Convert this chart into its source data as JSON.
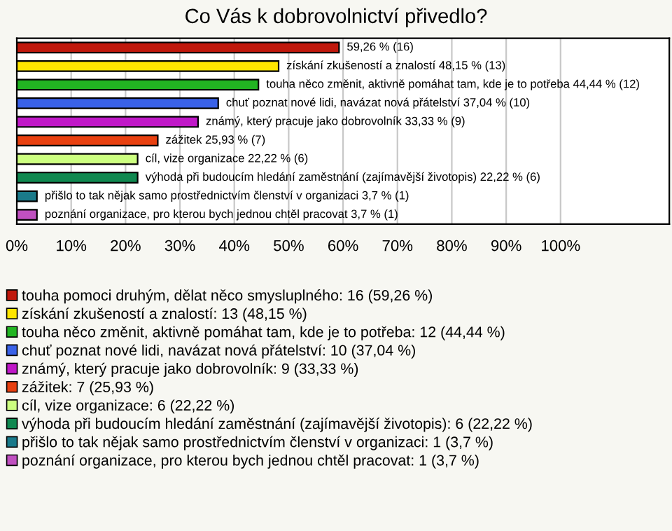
{
  "chart_data": {
    "type": "bar",
    "orientation": "horizontal",
    "title": "Co Vás k dobrovolnictví přivedlo?",
    "categories": [
      null,
      null,
      null,
      null,
      null,
      null,
      null,
      null,
      null,
      null
    ],
    "series": [
      {
        "name": "touha pomoci druhým, dělat něco smysluplného: 16 (59,26 %)",
        "color": "#c0180c",
        "values": [
          59.26,
          null,
          null,
          null,
          null,
          null,
          null,
          null,
          null,
          null
        ],
        "value_labels": [
          "59,26 % (16)",
          null,
          null,
          null,
          null,
          null,
          null,
          null,
          null,
          null
        ]
      },
      {
        "name": "získání zkušeností a znalostí: 13 (48,15 %)",
        "color": "#ffe600",
        "values": [
          null,
          48.15,
          null,
          null,
          null,
          null,
          null,
          null,
          null,
          null
        ],
        "value_labels": [
          null,
          "získání zkušeností a znalostí 48,15 % (13)",
          null,
          null,
          null,
          null,
          null,
          null,
          null,
          null
        ]
      },
      {
        "name": "touha něco změnit, aktivně pomáhat tam, kde je to potřeba: 12 (44,44 %)",
        "color": "#22b522",
        "values": [
          null,
          null,
          44.44,
          null,
          null,
          null,
          null,
          null,
          null,
          null
        ],
        "value_labels": [
          null,
          null,
          "touha něco změnit, aktivně pomáhat tam, kde je to potřeba 44,44 % (12)",
          null,
          null,
          null,
          null,
          null,
          null,
          null
        ]
      },
      {
        "name": "chuť poznat nové lidi, navázat nová přátelství: 10 (37,04 %)",
        "color": "#3a62e8",
        "values": [
          null,
          null,
          null,
          37.04,
          null,
          null,
          null,
          null,
          null,
          null
        ],
        "value_labels": [
          null,
          null,
          null,
          "chuť poznat nové lidi, navázat nová přátelství 37,04 % (10)",
          null,
          null,
          null,
          null,
          null,
          null
        ]
      },
      {
        "name": "známý, který pracuje jako dobrovolník: 9 (33,33 %)",
        "color": "#c018c8",
        "values": [
          null,
          null,
          null,
          null,
          33.33,
          null,
          null,
          null,
          null,
          null
        ],
        "value_labels": [
          null,
          null,
          null,
          null,
          "známý, který pracuje jako dobrovolník 33,33 % (9)",
          null,
          null,
          null,
          null,
          null
        ]
      },
      {
        "name": "zážitek: 7 (25,93 %)",
        "color": "#e84010",
        "values": [
          null,
          null,
          null,
          null,
          null,
          25.93,
          null,
          null,
          null,
          null
        ],
        "value_labels": [
          null,
          null,
          null,
          null,
          null,
          "zážitek 25,93 % (7)",
          null,
          null,
          null,
          null
        ]
      },
      {
        "name": "cíl, vize organizace: 6 (22,22 %)",
        "color": "#ccff80",
        "values": [
          null,
          null,
          null,
          null,
          null,
          null,
          22.22,
          null,
          null,
          null
        ],
        "value_labels": [
          null,
          null,
          null,
          null,
          null,
          null,
          "cíl, vize organizace 22,22 % (6)",
          null,
          null,
          null
        ]
      },
      {
        "name": "výhoda při budoucím hledání zaměstnání (zajímavější životopis): 6 (22,22 %)",
        "color": "#108850",
        "values": [
          null,
          null,
          null,
          null,
          null,
          null,
          null,
          22.22,
          null,
          null
        ],
        "value_labels": [
          null,
          null,
          null,
          null,
          null,
          null,
          null,
          "výhoda při budoucím hledání zaměstnání (zajímavější životopis) 22,22 % (6)",
          null,
          null
        ]
      },
      {
        "name": "přišlo to tak nějak samo prostřednictvím členství v organizaci: 1 (3,7 %)",
        "color": "#1a7a8a",
        "values": [
          null,
          null,
          null,
          null,
          null,
          null,
          null,
          null,
          3.7,
          null
        ],
        "value_labels": [
          null,
          null,
          null,
          null,
          null,
          null,
          null,
          null,
          "přišlo to tak nějak samo prostřednictvím členství v organizaci 3,7 % (1)",
          null
        ]
      },
      {
        "name": "poznání organizace, pro kterou bych jednou chtěl pracovat: 1 (3,7 %)",
        "color": "#c050c0",
        "values": [
          null,
          null,
          null,
          null,
          null,
          null,
          null,
          null,
          null,
          3.7
        ],
        "value_labels": [
          null,
          null,
          null,
          null,
          null,
          null,
          null,
          null,
          null,
          "poznání organizace, pro kterou bych jednou chtěl pracovat 3,7 % (1)"
        ]
      }
    ],
    "xlim": [
      0,
      120
    ],
    "xticks": [
      {
        "value": 0,
        "label": "0%"
      },
      {
        "value": 10,
        "label": "10%"
      },
      {
        "value": 20,
        "label": "20%"
      },
      {
        "value": 30,
        "label": "30%"
      },
      {
        "value": 40,
        "label": "40%"
      },
      {
        "value": 50,
        "label": "50%"
      },
      {
        "value": 60,
        "label": "60%"
      },
      {
        "value": 70,
        "label": "70%"
      },
      {
        "value": 80,
        "label": "80%"
      },
      {
        "value": 90,
        "label": "90%"
      },
      {
        "value": 100,
        "label": "100%"
      }
    ],
    "grid": "x",
    "legend": "bottom",
    "tick_labels": "x"
  }
}
